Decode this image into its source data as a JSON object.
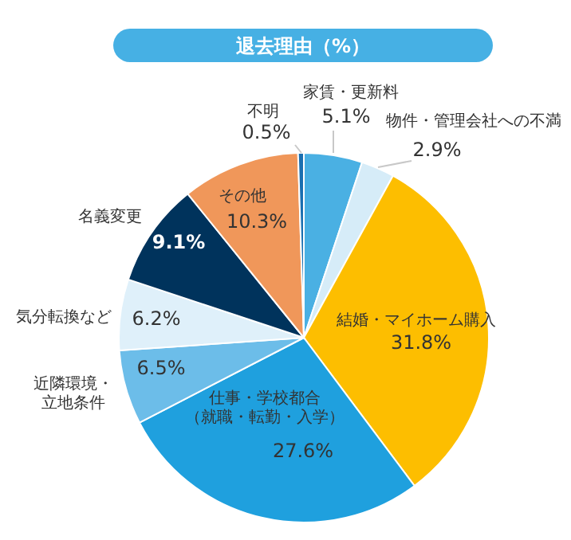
{
  "chart_data": {
    "type": "pie",
    "title": "退去理由（%）",
    "categories": [
      "家賃・更新料",
      "物件・管理会社への不満",
      "結婚・マイホーム購入",
      "仕事・学校都合（就職・転勤・入学）",
      "近隣環境・立地条件",
      "気分転換など",
      "名義変更",
      "その他",
      "不明"
    ],
    "values": [
      5.1,
      2.9,
      31.8,
      27.6,
      6.5,
      6.2,
      9.1,
      10.3,
      0.5
    ],
    "value_labels": [
      "5.1%",
      "2.9%",
      "31.8%",
      "27.6%",
      "6.5%",
      "6.2%",
      "9.1%",
      "10.3%",
      "0.5%"
    ],
    "colors": [
      "#4ab0e3",
      "#d6ecf8",
      "#fdbe00",
      "#1fa0de",
      "#6cbde9",
      "#dff0fa",
      "#00335c",
      "#f0975a",
      "#1a6fb0"
    ]
  }
}
